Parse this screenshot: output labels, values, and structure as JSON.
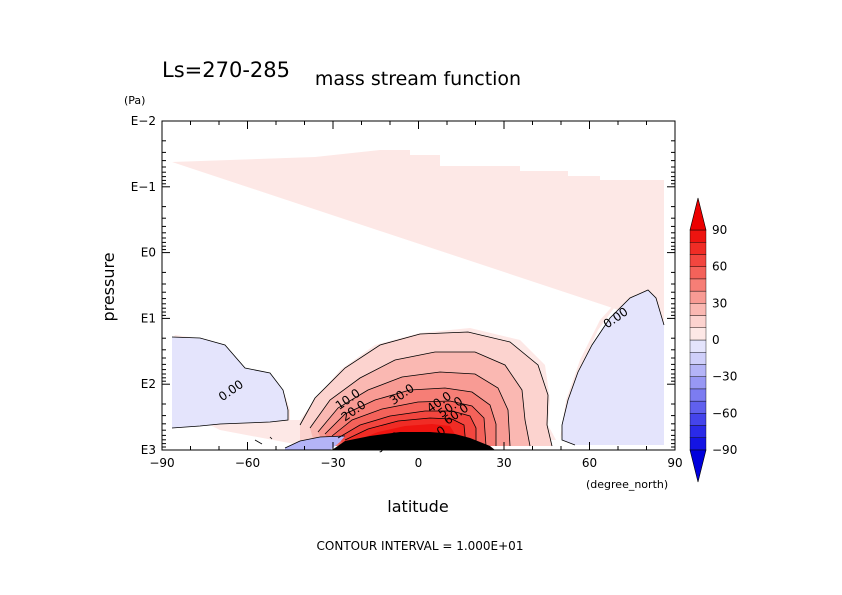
{
  "chart_data": {
    "type": "contour",
    "title": "mass stream function",
    "season_label": "Ls=270-285",
    "xlabel": "latitude",
    "x_unit": "(degree_north)",
    "ylabel": "pressure",
    "y_unit": "(Pa)",
    "xlim": [
      -90,
      90
    ],
    "ylim": [
      1000,
      0.01
    ],
    "y_scale": "log",
    "x_ticks": [
      {
        "value": -90,
        "label": "−90"
      },
      {
        "value": -60,
        "label": "−60"
      },
      {
        "value": -30,
        "label": "−30"
      },
      {
        "value": 0,
        "label": "0"
      },
      {
        "value": 30,
        "label": "30"
      },
      {
        "value": 60,
        "label": "60"
      },
      {
        "value": 90,
        "label": "90"
      }
    ],
    "y_ticks": [
      {
        "value": 0.01,
        "label": "E−2"
      },
      {
        "value": 0.1,
        "label": "E−1"
      },
      {
        "value": 1,
        "label": "E0"
      },
      {
        "value": 10,
        "label": "E1"
      },
      {
        "value": 100,
        "label": "E2"
      },
      {
        "value": 1000,
        "label": "E3"
      }
    ],
    "footer": "CONTOUR INTERVAL = 1.000E+01",
    "contour_interval": 10,
    "colorbar": {
      "levels": [
        -100,
        -90,
        -80,
        -70,
        -60,
        -50,
        -40,
        -30,
        -20,
        -10,
        0,
        10,
        20,
        30,
        40,
        50,
        60,
        70,
        80,
        90,
        100
      ],
      "tick_values": [
        90,
        60,
        30,
        0,
        -30,
        -60,
        -90
      ],
      "tick_labels": [
        "90",
        "60",
        "30",
        "0",
        "−30",
        "−60",
        "−90"
      ],
      "colors_positive": [
        "#fde8e6",
        "#fcd3cf",
        "#fab8b2",
        "#f89b94",
        "#f67e76",
        "#f4625a",
        "#f2463f",
        "#f02c25",
        "#ee1410",
        "#ec0000"
      ],
      "colors_negative": [
        "#e4e4fc",
        "#cfcffa",
        "#b4b4f7",
        "#9898f4",
        "#7c7cf1",
        "#6060ee",
        "#4444eb",
        "#2a2ae8",
        "#1414e4",
        "#0000dc"
      ]
    },
    "contour_labels": [
      {
        "text": "0.00",
        "lat": -65,
        "p": 140
      },
      {
        "text": "0.00",
        "lat": 70,
        "p": 11
      },
      {
        "text": "10.0",
        "lat": -24,
        "p": 190
      },
      {
        "text": "20.0",
        "lat": -22,
        "p": 285
      },
      {
        "text": "30.0",
        "lat": -5,
        "p": 160
      },
      {
        "text": "40.0",
        "lat": 8,
        "p": 210
      },
      {
        "text": "50.0",
        "lat": 12,
        "p": 250
      },
      {
        "text": "60.0",
        "lat": 14,
        "p": 320
      },
      {
        "text": "70.0",
        "lat": 6,
        "p": 700
      },
      {
        "text": "90.0",
        "lat": -10,
        "p": 860
      }
    ]
  }
}
